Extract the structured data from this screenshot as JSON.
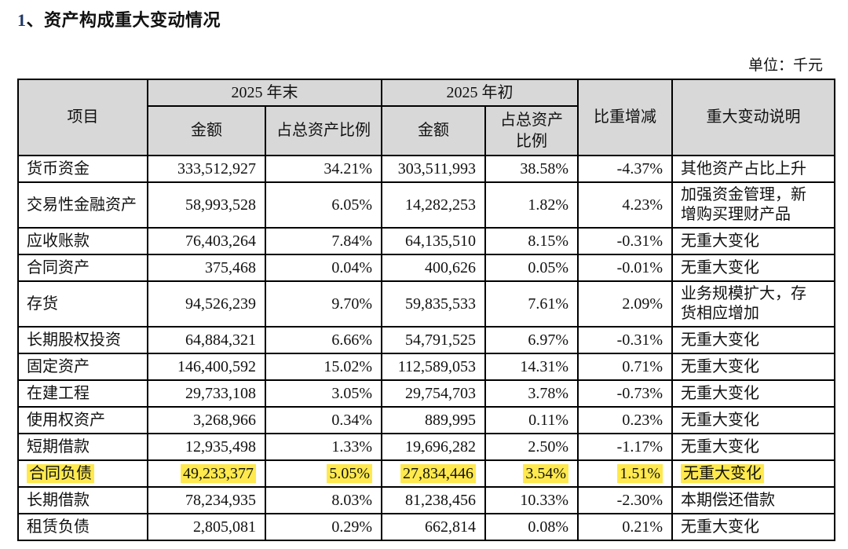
{
  "page": {
    "title_number": "1",
    "title_text": "、资产构成重大变动情况",
    "unit_label": "单位：千元"
  },
  "colors": {
    "title_number": "#1f3864",
    "header_bg": "#d8d8d8",
    "highlight": "#ffe94d",
    "border": "#000000"
  },
  "table": {
    "header": {
      "item": "项目",
      "period_end": "2025 年末",
      "period_start": "2025 年初",
      "amount_end": "金额",
      "ratio_end": "占总资产比例",
      "amount_start": "金额",
      "ratio_start": "占总资产比例",
      "change": "比重增减",
      "explanation": "重大变动说明"
    },
    "rows": [
      {
        "item": "货币资金",
        "end_amount": "333,512,927",
        "end_ratio": "34.21%",
        "start_amount": "303,511,993",
        "start_ratio": "38.58%",
        "change": "-4.37%",
        "note": "其他资产占比上升",
        "highlight": false
      },
      {
        "item": "交易性金融资产",
        "end_amount": "58,993,528",
        "end_ratio": "6.05%",
        "start_amount": "14,282,253",
        "start_ratio": "1.82%",
        "change": "4.23%",
        "note": "加强资金管理，新增购买理财产品",
        "highlight": false
      },
      {
        "item": "应收账款",
        "end_amount": "76,403,264",
        "end_ratio": "7.84%",
        "start_amount": "64,135,510",
        "start_ratio": "8.15%",
        "change": "-0.31%",
        "note": "无重大变化",
        "highlight": false
      },
      {
        "item": "合同资产",
        "end_amount": "375,468",
        "end_ratio": "0.04%",
        "start_amount": "400,626",
        "start_ratio": "0.05%",
        "change": "-0.01%",
        "note": "无重大变化",
        "highlight": false
      },
      {
        "item": "存货",
        "end_amount": "94,526,239",
        "end_ratio": "9.70%",
        "start_amount": "59,835,533",
        "start_ratio": "7.61%",
        "change": "2.09%",
        "note": "业务规模扩大，存货相应增加",
        "highlight": false
      },
      {
        "item": "长期股权投资",
        "end_amount": "64,884,321",
        "end_ratio": "6.66%",
        "start_amount": "54,791,525",
        "start_ratio": "6.97%",
        "change": "-0.31%",
        "note": "无重大变化",
        "highlight": false
      },
      {
        "item": "固定资产",
        "end_amount": "146,400,592",
        "end_ratio": "15.02%",
        "start_amount": "112,589,053",
        "start_ratio": "14.31%",
        "change": "0.71%",
        "note": "无重大变化",
        "highlight": false
      },
      {
        "item": "在建工程",
        "end_amount": "29,733,108",
        "end_ratio": "3.05%",
        "start_amount": "29,754,703",
        "start_ratio": "3.78%",
        "change": "-0.73%",
        "note": "无重大变化",
        "highlight": false
      },
      {
        "item": "使用权资产",
        "end_amount": "3,268,966",
        "end_ratio": "0.34%",
        "start_amount": "889,995",
        "start_ratio": "0.11%",
        "change": "0.23%",
        "note": "无重大变化",
        "highlight": false
      },
      {
        "item": "短期借款",
        "end_amount": "12,935,498",
        "end_ratio": "1.33%",
        "start_amount": "19,696,282",
        "start_ratio": "2.50%",
        "change": "-1.17%",
        "note": "无重大变化",
        "highlight": false
      },
      {
        "item": "合同负债",
        "end_amount": "49,233,377",
        "end_ratio": "5.05%",
        "start_amount": "27,834,446",
        "start_ratio": "3.54%",
        "change": "1.51%",
        "note": "无重大变化",
        "highlight": true
      },
      {
        "item": "长期借款",
        "end_amount": "78,234,935",
        "end_ratio": "8.03%",
        "start_amount": "81,238,456",
        "start_ratio": "10.33%",
        "change": "-2.30%",
        "note": "本期偿还借款",
        "highlight": false
      },
      {
        "item": "租赁负债",
        "end_amount": "2,805,081",
        "end_ratio": "0.29%",
        "start_amount": "662,814",
        "start_ratio": "0.08%",
        "change": "0.21%",
        "note": "无重大变化",
        "highlight": false
      }
    ]
  }
}
